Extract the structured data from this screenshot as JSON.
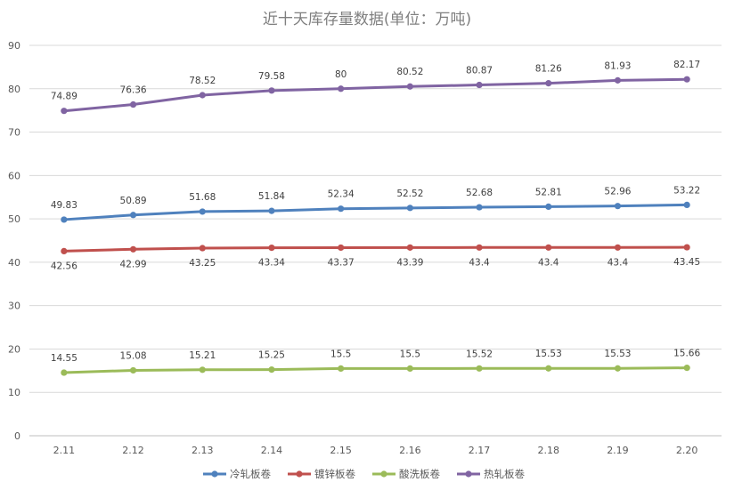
{
  "chart_data": {
    "type": "line",
    "title": "近十天库存量数据(单位：万吨)",
    "xlabel": "",
    "ylabel": "",
    "categories": [
      "2.11",
      "2.12",
      "2.13",
      "2.14",
      "2.15",
      "2.16",
      "2.17",
      "2.18",
      "2.19",
      "2.20"
    ],
    "ylim": [
      0,
      90
    ],
    "yticks": [
      0,
      10,
      20,
      30,
      40,
      50,
      60,
      70,
      80,
      90
    ],
    "grid": true,
    "legend_position": "bottom",
    "series": [
      {
        "name": "冷轧板卷",
        "color": "#4f81bd",
        "label_position": "above",
        "values": [
          49.83,
          50.89,
          51.68,
          51.84,
          52.34,
          52.52,
          52.68,
          52.81,
          52.96,
          53.22
        ]
      },
      {
        "name": "镀锌板卷",
        "color": "#c0504d",
        "label_position": "below",
        "values": [
          42.56,
          42.99,
          43.25,
          43.34,
          43.37,
          43.39,
          43.4,
          43.4,
          43.4,
          43.45
        ]
      },
      {
        "name": "酸洗板卷",
        "color": "#9bbb59",
        "label_position": "above",
        "values": [
          14.55,
          15.08,
          15.21,
          15.25,
          15.5,
          15.5,
          15.52,
          15.53,
          15.53,
          15.66
        ]
      },
      {
        "name": "热轧板卷",
        "color": "#8064a2",
        "label_position": "above",
        "values": [
          74.89,
          76.36,
          78.52,
          79.58,
          80,
          80.52,
          80.87,
          81.26,
          81.93,
          82.17
        ]
      }
    ]
  }
}
